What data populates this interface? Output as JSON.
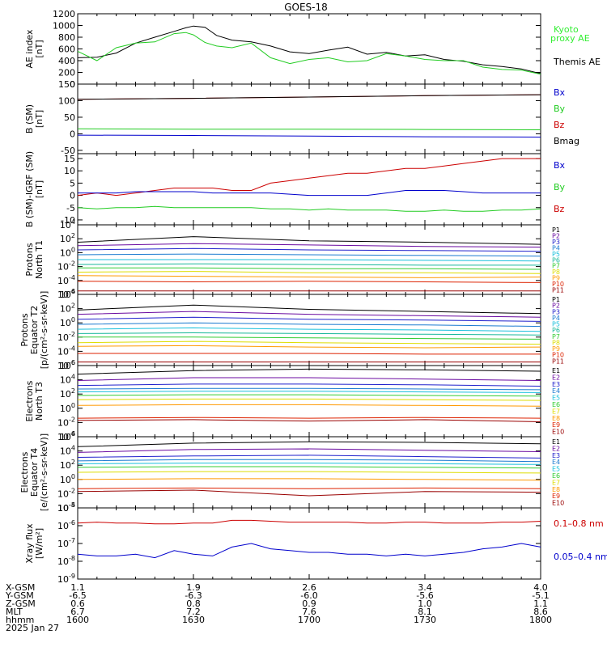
{
  "title": "GOES-18",
  "date_label": "2025 Jan 27",
  "colors": {
    "black": "#000000",
    "red": "#cc0000",
    "green": "#22cc22",
    "blue": "#0000cc",
    "bright_green": "#33ee33"
  },
  "ephemeris": {
    "rows": [
      {
        "label": "X-GSM",
        "values": [
          "1.1",
          "1.9",
          "2.6",
          "3.4",
          "4.0"
        ]
      },
      {
        "label": "Y-GSM",
        "values": [
          "-6.5",
          "-6.3",
          "-6.0",
          "-5.6",
          "-5.1"
        ]
      },
      {
        "label": "Z-GSM",
        "values": [
          "0.6",
          "0.8",
          "0.9",
          "1.0",
          "1.1"
        ]
      },
      {
        "label": "MLT",
        "values": [
          "6.7",
          "7.2",
          "7.6",
          "8.1",
          "8.6"
        ]
      },
      {
        "label": "hhmm",
        "values": [
          "1600",
          "1630",
          "1700",
          "1730",
          "1800"
        ]
      }
    ]
  },
  "chart_data": [
    {
      "type": "line",
      "ylabel": "AE index\n[nT]",
      "x": [
        1600,
        1605,
        1610,
        1615,
        1620,
        1625,
        1628,
        1630,
        1633,
        1636,
        1640,
        1645,
        1650,
        1655,
        1700,
        1705,
        1710,
        1715,
        1720,
        1725,
        1730,
        1735,
        1740,
        1745,
        1750,
        1755,
        1800
      ],
      "ylim": [
        0,
        1200
      ],
      "yticks": [
        "0",
        "200",
        "400",
        "600",
        "800",
        "1000",
        "1200"
      ],
      "legend": [
        "Kyoto\nproxy AE",
        "Themis AE"
      ],
      "series": [
        {
          "name": "Themis AE",
          "color": "black",
          "values": [
            450,
            460,
            530,
            700,
            800,
            900,
            960,
            990,
            970,
            830,
            750,
            720,
            650,
            550,
            520,
            580,
            630,
            510,
            540,
            480,
            500,
            420,
            390,
            330,
            300,
            260,
            180
          ]
        },
        {
          "name": "Kyoto proxy AE",
          "color": "green",
          "values": [
            560,
            400,
            620,
            700,
            720,
            860,
            880,
            840,
            710,
            650,
            620,
            700,
            450,
            350,
            420,
            450,
            380,
            400,
            520,
            480,
            420,
            400,
            400,
            290,
            250,
            240,
            170
          ]
        }
      ]
    },
    {
      "type": "line",
      "ylabel": "B (SM)\n[nT]",
      "x": [
        1600,
        1630,
        1700,
        1730,
        1800
      ],
      "ylim": [
        -60,
        150
      ],
      "yticks": [
        "-50",
        "0",
        "50",
        "100",
        "150"
      ],
      "legend": [
        "Bx",
        "By",
        "Bz",
        "Bmag"
      ],
      "series": [
        {
          "name": "Bz",
          "color": "red",
          "values": [
            104,
            107,
            111,
            115,
            118
          ]
        },
        {
          "name": "Bmag",
          "color": "black",
          "values": [
            104,
            107,
            111,
            115,
            118
          ]
        },
        {
          "name": "By",
          "color": "green",
          "values": [
            15,
            14,
            14,
            13,
            12
          ]
        },
        {
          "name": "Bx",
          "color": "blue",
          "values": [
            -4,
            -5,
            -7,
            -9,
            -10
          ]
        }
      ]
    },
    {
      "type": "line",
      "ylabel": "B (SM)-IGRF (SM)\n[nT]",
      "x": [
        1600,
        1605,
        1610,
        1615,
        1620,
        1625,
        1630,
        1635,
        1640,
        1645,
        1650,
        1655,
        1700,
        1705,
        1710,
        1715,
        1720,
        1725,
        1730,
        1735,
        1740,
        1745,
        1750,
        1755,
        1800
      ],
      "ylim": [
        -12,
        17
      ],
      "yticks": [
        "-10",
        "-5",
        "0",
        "5",
        "10",
        "15"
      ],
      "legend": [
        "Bx",
        "By",
        "Bz"
      ],
      "series": [
        {
          "name": "Bz",
          "color": "red",
          "values": [
            0,
            1,
            0,
            1,
            2,
            3,
            3,
            3,
            2,
            2,
            5,
            6,
            7,
            8,
            9,
            9,
            10,
            11,
            11,
            12,
            13,
            14,
            15,
            15,
            15
          ]
        },
        {
          "name": "Bx",
          "color": "blue",
          "values": [
            1,
            1,
            1,
            1.5,
            1.5,
            1.5,
            1.5,
            1,
            1,
            1,
            1,
            0.5,
            0,
            0,
            0,
            0,
            1,
            2,
            2,
            2,
            1.5,
            1,
            1,
            1,
            1
          ]
        },
        {
          "name": "By",
          "color": "green",
          "values": [
            -5,
            -5.5,
            -5,
            -5,
            -4.5,
            -5,
            -5,
            -5,
            -5,
            -5,
            -5.5,
            -5.5,
            -6,
            -5.5,
            -6,
            -6,
            -6,
            -6.5,
            -6.5,
            -6,
            -6.5,
            -6.5,
            -6,
            -6,
            -5.5
          ]
        }
      ]
    },
    {
      "type": "line",
      "yscale": "log",
      "ylabel": "Protons\nNorth T1",
      "x": [
        1600,
        1630,
        1700,
        1730,
        1800
      ],
      "ylim_exp": [
        -6,
        4
      ],
      "yticks": [
        "10^-6",
        "10^-4",
        "10^-2",
        "10^0",
        "10^2",
        "10^4"
      ],
      "legend": [
        "P1",
        "P2",
        "P3",
        "P4",
        "P5",
        "P6",
        "P7",
        "P8",
        "P9",
        "P10",
        "P11"
      ],
      "series": [
        {
          "name": "P1",
          "color": "#000000",
          "values": [
            1.5,
            2.3,
            1.7,
            1.5,
            1.2
          ]
        },
        {
          "name": "P2",
          "color": "#6a0aa0",
          "values": [
            1.0,
            1.3,
            1.1,
            0.9,
            0.8
          ]
        },
        {
          "name": "P3",
          "color": "#2020cc",
          "values": [
            0.4,
            0.6,
            0.4,
            0.3,
            0.2
          ]
        },
        {
          "name": "P4",
          "color": "#1a7ad0",
          "values": [
            -0.3,
            -0.2,
            -0.3,
            -0.4,
            -0.5
          ]
        },
        {
          "name": "P5",
          "color": "#19c0dc",
          "values": [
            -1.0,
            -1.0,
            -1.0,
            -1.1,
            -1.2
          ]
        },
        {
          "name": "P6",
          "color": "#1ab89a",
          "values": [
            -1.7,
            -1.6,
            -1.7,
            -1.8,
            -1.8
          ]
        },
        {
          "name": "P7",
          "color": "#33cc33",
          "values": [
            -2.2,
            -2.2,
            -2.3,
            -2.3,
            -2.4
          ]
        },
        {
          "name": "P8",
          "color": "#dddd00",
          "values": [
            -2.8,
            -2.7,
            -2.9,
            -2.9,
            -3.0
          ]
        },
        {
          "name": "P9",
          "color": "#ff9900",
          "values": [
            -3.3,
            -3.4,
            -3.5,
            -3.6,
            -3.5
          ]
        },
        {
          "name": "P10",
          "color": "#dd2200",
          "values": [
            -4.1,
            -4.2,
            -4.1,
            -4.2,
            -4.3
          ]
        },
        {
          "name": "P11",
          "color": "#990000",
          "values": [
            -5.5,
            -5.5,
            -5.5,
            -5.5,
            -5.5
          ]
        }
      ]
    },
    {
      "type": "line",
      "yscale": "log",
      "ylabel": "Protons\nEquator T2\n[p/(cm²-s-sr-keV)]",
      "x": [
        1600,
        1630,
        1700,
        1730,
        1800
      ],
      "ylim_exp": [
        -6,
        4
      ],
      "yticks": [
        "10^-6",
        "10^-4",
        "10^-2",
        "10^0",
        "10^2",
        "10^4"
      ],
      "legend": [
        "P1",
        "P2",
        "P3",
        "P4",
        "P5",
        "P6",
        "P7",
        "P8",
        "P9",
        "P10",
        "P11"
      ],
      "series": [
        {
          "name": "P1",
          "color": "#000000",
          "values": [
            1.8,
            2.5,
            1.9,
            1.6,
            1.3
          ]
        },
        {
          "name": "P2",
          "color": "#6a0aa0",
          "values": [
            1.2,
            1.6,
            1.2,
            1.0,
            0.8
          ]
        },
        {
          "name": "P3",
          "color": "#2020cc",
          "values": [
            0.5,
            0.8,
            0.5,
            0.4,
            0.2
          ]
        },
        {
          "name": "P4",
          "color": "#1a7ad0",
          "values": [
            -0.2,
            0.0,
            -0.2,
            -0.3,
            -0.5
          ]
        },
        {
          "name": "P5",
          "color": "#19c0dc",
          "values": [
            -0.9,
            -0.7,
            -0.9,
            -1.0,
            -1.2
          ]
        },
        {
          "name": "P6",
          "color": "#1ab89a",
          "values": [
            -1.5,
            -1.4,
            -1.5,
            -1.6,
            -1.7
          ]
        },
        {
          "name": "P7",
          "color": "#33cc33",
          "values": [
            -2.0,
            -2.0,
            -2.1,
            -2.2,
            -2.3
          ]
        },
        {
          "name": "P8",
          "color": "#dddd00",
          "values": [
            -2.8,
            -2.6,
            -2.8,
            -2.9,
            -3.0
          ]
        },
        {
          "name": "P9",
          "color": "#ff9900",
          "values": [
            -3.3,
            -3.2,
            -3.4,
            -3.5,
            -3.4
          ]
        },
        {
          "name": "P10",
          "color": "#dd2200",
          "values": [
            -4.3,
            -4.3,
            -4.3,
            -4.4,
            -4.4
          ]
        },
        {
          "name": "P11",
          "color": "#990000",
          "values": [
            -5.5,
            -5.5,
            -5.5,
            -5.5,
            -5.5
          ]
        }
      ]
    },
    {
      "type": "line",
      "yscale": "log",
      "ylabel": "Electrons\nNorth T3",
      "x": [
        1600,
        1630,
        1700,
        1730,
        1800
      ],
      "ylim_exp": [
        -4,
        6
      ],
      "yticks": [
        "10^-4",
        "10^-2",
        "10^0",
        "10^2",
        "10^4",
        "10^6"
      ],
      "legend": [
        "E1",
        "E2",
        "E3",
        "E4",
        "E5",
        "E6",
        "E7",
        "E8",
        "E9",
        "E10"
      ],
      "series": [
        {
          "name": "E1",
          "color": "#000000",
          "values": [
            4.8,
            5.3,
            5.5,
            5.4,
            5.2
          ]
        },
        {
          "name": "E2",
          "color": "#6a0aa0",
          "values": [
            3.9,
            4.3,
            4.3,
            4.1,
            3.9
          ]
        },
        {
          "name": "E3",
          "color": "#2020cc",
          "values": [
            3.2,
            3.4,
            3.4,
            3.3,
            3.1
          ]
        },
        {
          "name": "E4",
          "color": "#1a7ad0",
          "values": [
            2.7,
            2.8,
            2.8,
            2.7,
            2.6
          ]
        },
        {
          "name": "E5",
          "color": "#19c0dc",
          "values": [
            2.3,
            2.4,
            2.4,
            2.3,
            2.2
          ]
        },
        {
          "name": "E6",
          "color": "#33cc33",
          "values": [
            1.8,
            1.9,
            1.9,
            1.8,
            1.7
          ]
        },
        {
          "name": "E7",
          "color": "#dddd00",
          "values": [
            1.2,
            1.3,
            1.3,
            1.2,
            1.1
          ]
        },
        {
          "name": "E8",
          "color": "#ff9900",
          "values": [
            0.4,
            0.5,
            0.5,
            0.4,
            0.3
          ]
        },
        {
          "name": "E9",
          "color": "#dd2200",
          "values": [
            -1.4,
            -1.3,
            -1.4,
            -1.3,
            -1.4
          ]
        },
        {
          "name": "E10",
          "color": "#990000",
          "values": [
            -1.7,
            -1.6,
            -1.8,
            -1.6,
            -1.9
          ]
        }
      ]
    },
    {
      "type": "line",
      "yscale": "log",
      "ylabel": "Electrons\nEquator T4\n[e/(cm²-s-sr-keV)]",
      "x": [
        1600,
        1630,
        1700,
        1730,
        1800
      ],
      "ylim_exp": [
        -4,
        6
      ],
      "yticks": [
        "10^-4",
        "10^-2",
        "10^0",
        "10^2",
        "10^4",
        "10^6"
      ],
      "legend": [
        "E1",
        "E2",
        "E3",
        "E4",
        "E5",
        "E6",
        "E7",
        "E8",
        "E9",
        "E10"
      ],
      "series": [
        {
          "name": "E1",
          "color": "#000000",
          "values": [
            4.6,
            5.1,
            5.3,
            5.2,
            5.0
          ]
        },
        {
          "name": "E2",
          "color": "#6a0aa0",
          "values": [
            3.8,
            4.2,
            4.3,
            4.1,
            3.9
          ]
        },
        {
          "name": "E3",
          "color": "#2020cc",
          "values": [
            3.1,
            3.3,
            3.4,
            3.2,
            3.0
          ]
        },
        {
          "name": "E4",
          "color": "#1a7ad0",
          "values": [
            2.6,
            2.8,
            2.8,
            2.7,
            2.5
          ]
        },
        {
          "name": "E5",
          "color": "#19c0dc",
          "values": [
            2.2,
            2.3,
            2.3,
            2.2,
            2.1
          ]
        },
        {
          "name": "E6",
          "color": "#33cc33",
          "values": [
            1.7,
            1.8,
            1.8,
            1.7,
            1.6
          ]
        },
        {
          "name": "E7",
          "color": "#dddd00",
          "values": [
            1.0,
            1.1,
            1.1,
            1.0,
            0.9
          ]
        },
        {
          "name": "E8",
          "color": "#ff9900",
          "values": [
            0.0,
            0.1,
            0.1,
            0.0,
            -0.1
          ]
        },
        {
          "name": "E9",
          "color": "#dd2200",
          "values": [
            -1.3,
            -1.2,
            -1.3,
            -1.2,
            -1.3
          ]
        },
        {
          "name": "E10",
          "color": "#990000",
          "values": [
            -1.7,
            -1.5,
            -2.3,
            -1.7,
            -1.8
          ]
        }
      ]
    },
    {
      "type": "line",
      "yscale": "log",
      "ylabel": "Xray flux\n[W/m²]",
      "x": [
        1600,
        1605,
        1610,
        1615,
        1620,
        1625,
        1630,
        1635,
        1640,
        1645,
        1650,
        1655,
        1700,
        1705,
        1710,
        1715,
        1720,
        1725,
        1730,
        1735,
        1740,
        1745,
        1750,
        1755,
        1800
      ],
      "ylim_exp": [
        -9,
        -5
      ],
      "yticks": [
        "10^-9",
        "10^-8",
        "10^-7",
        "10^-6",
        "10^-5"
      ],
      "legend": [
        "0.1–0.8 nm",
        "0.05–0.4 nm"
      ],
      "series": [
        {
          "name": "0.1–0.8 nm",
          "color": "red",
          "values": [
            -5.85,
            -5.8,
            -5.85,
            -5.85,
            -5.9,
            -5.9,
            -5.85,
            -5.85,
            -5.7,
            -5.7,
            -5.75,
            -5.8,
            -5.8,
            -5.8,
            -5.8,
            -5.85,
            -5.85,
            -5.8,
            -5.8,
            -5.85,
            -5.85,
            -5.85,
            -5.8,
            -5.8,
            -5.75
          ]
        },
        {
          "name": "0.05–0.4 nm",
          "color": "blue",
          "values": [
            -7.6,
            -7.7,
            -7.7,
            -7.6,
            -7.8,
            -7.4,
            -7.6,
            -7.7,
            -7.2,
            -7.0,
            -7.3,
            -7.4,
            -7.5,
            -7.5,
            -7.6,
            -7.6,
            -7.7,
            -7.6,
            -7.7,
            -7.6,
            -7.5,
            -7.3,
            -7.2,
            -7.0,
            -7.2
          ]
        }
      ]
    }
  ]
}
